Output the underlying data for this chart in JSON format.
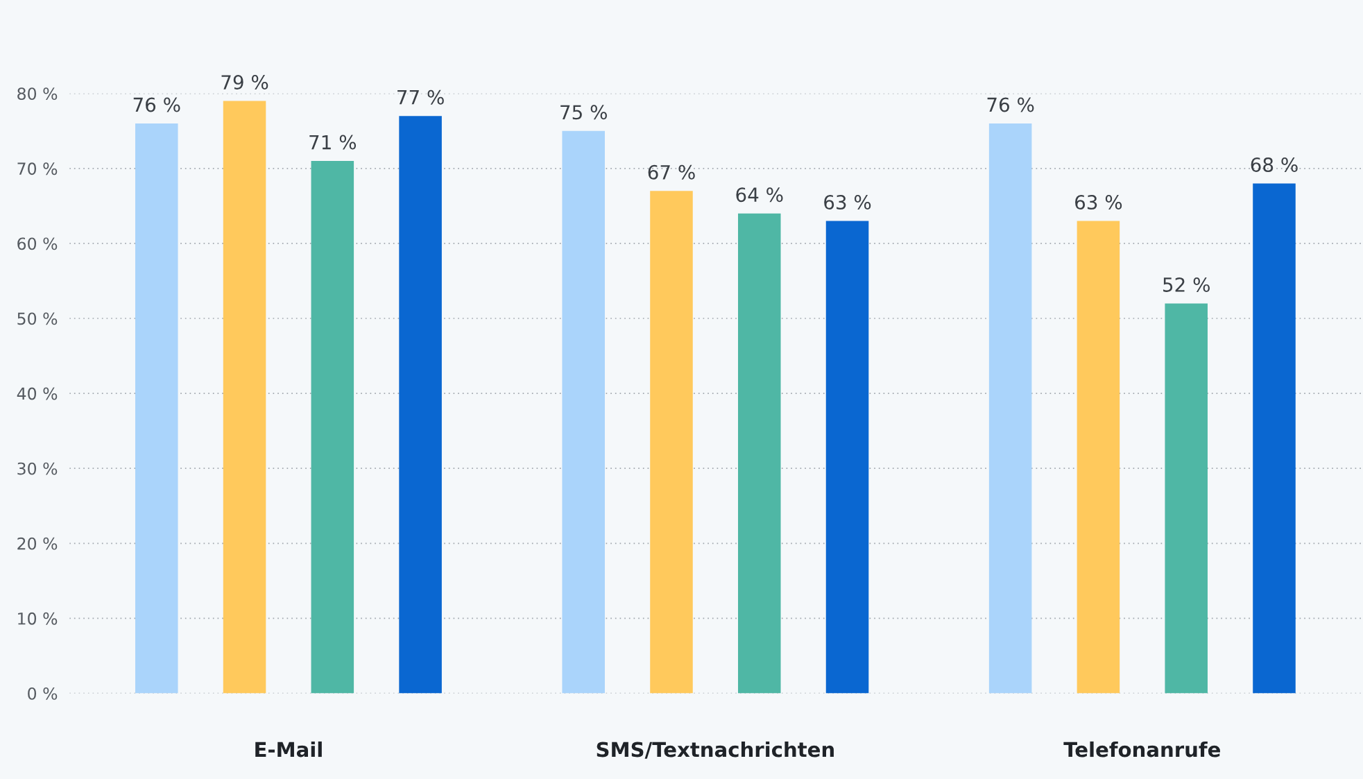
{
  "chart_data": {
    "type": "bar",
    "categories": [
      "E-Mail",
      "SMS/Textnachrichten",
      "Telefonanrufe"
    ],
    "series": [
      {
        "color": "#aad4fb",
        "values": [
          76,
          75,
          76
        ],
        "value_labels": [
          "76 %",
          "75 %",
          "76 %"
        ]
      },
      {
        "color": "#ffc95c",
        "values": [
          79,
          67,
          63
        ],
        "value_labels": [
          "79 %",
          "67 %",
          "63 %"
        ]
      },
      {
        "color": "#4fb7a5",
        "values": [
          71,
          64,
          52
        ],
        "value_labels": [
          "71 %",
          "64 %",
          "52 %"
        ]
      },
      {
        "color": "#0a67d1",
        "values": [
          77,
          63,
          68
        ],
        "value_labels": [
          "77 %",
          "63 %",
          "68 %"
        ]
      }
    ],
    "ylim": [
      0,
      80
    ],
    "yticks": [
      {
        "value": 0,
        "label": "0 %"
      },
      {
        "value": 10,
        "label": "10 %"
      },
      {
        "value": 20,
        "label": "20 %"
      },
      {
        "value": 30,
        "label": "30 %"
      },
      {
        "value": 40,
        "label": "40 %"
      },
      {
        "value": 50,
        "label": "50 %"
      },
      {
        "value": 60,
        "label": "60 %"
      },
      {
        "value": 70,
        "label": "70 %"
      },
      {
        "value": 80,
        "label": "80 %"
      }
    ],
    "grid": "y",
    "legend": false
  }
}
